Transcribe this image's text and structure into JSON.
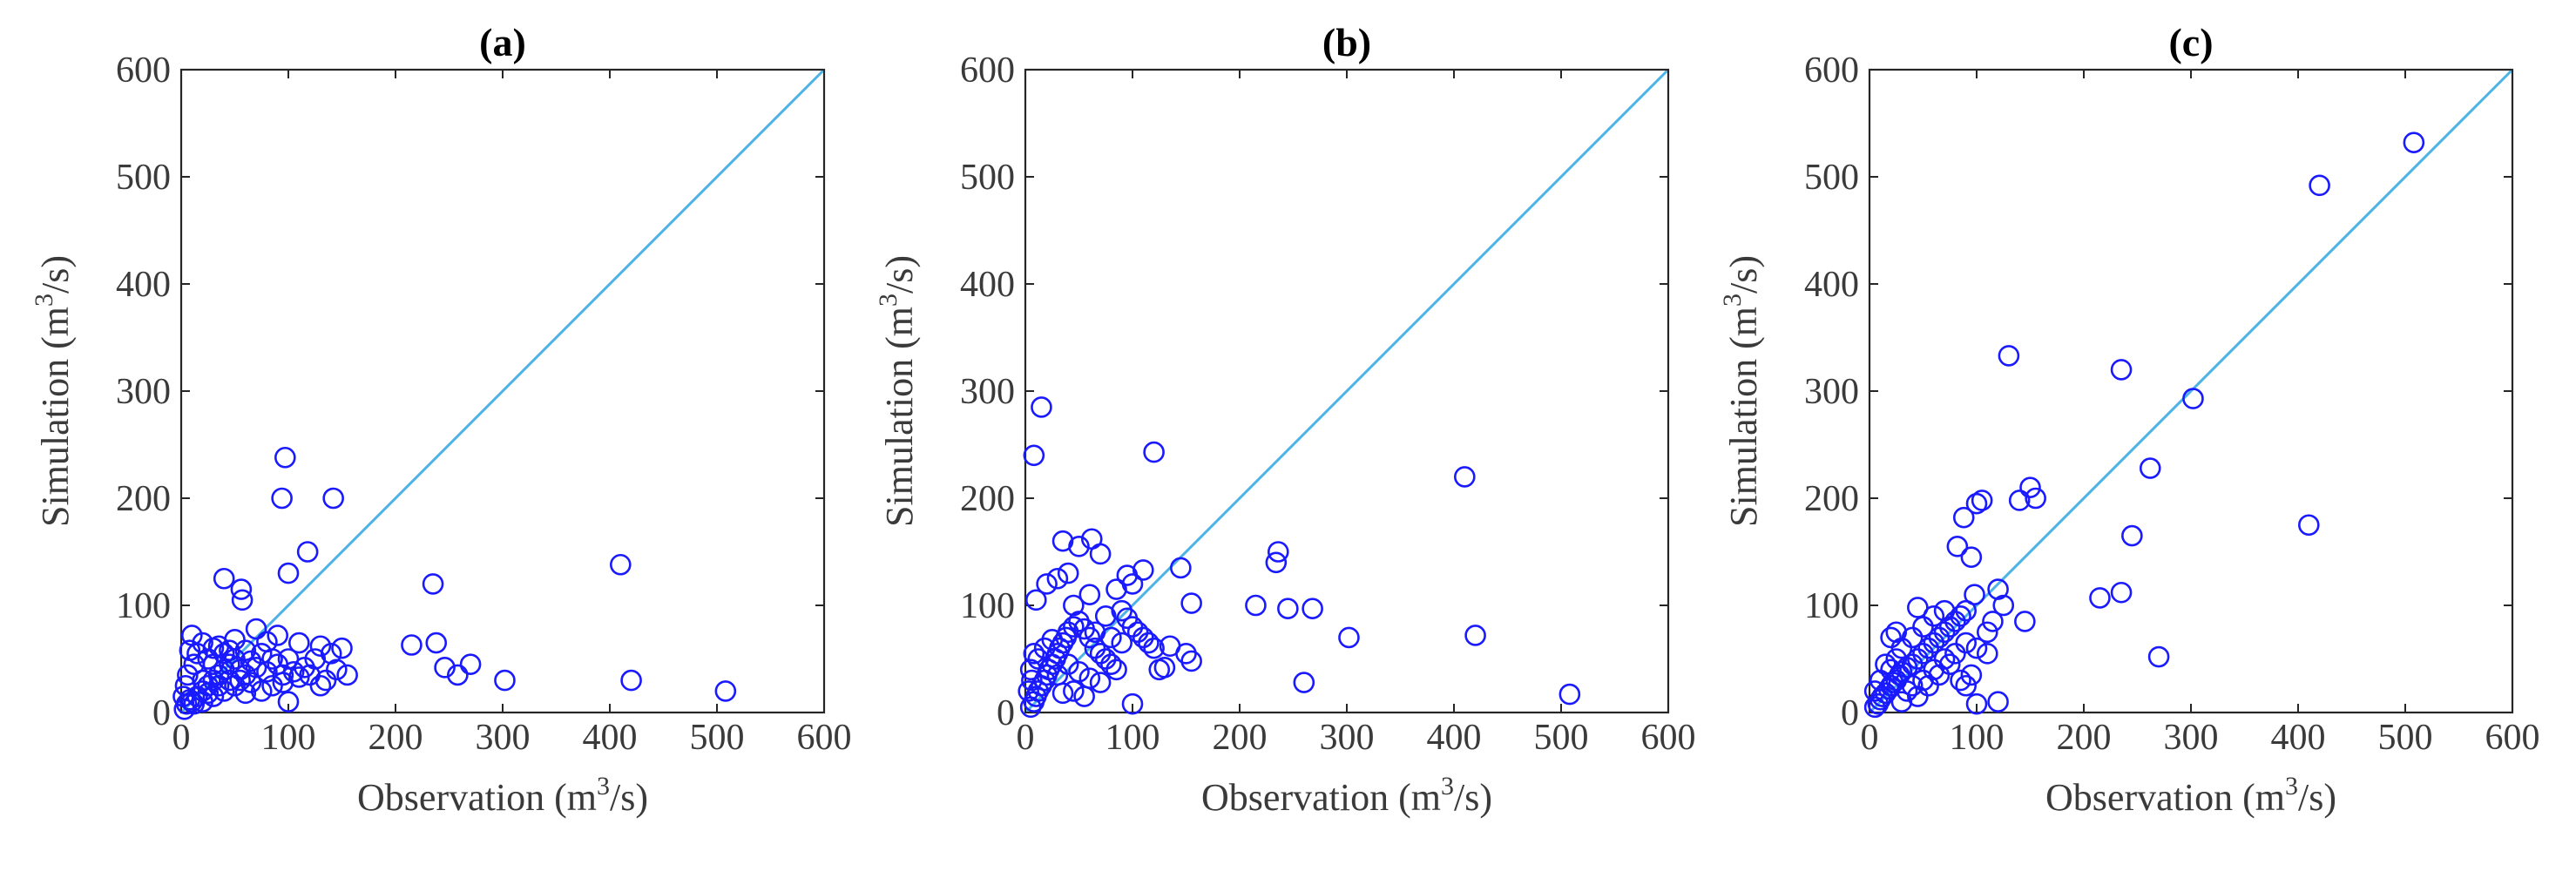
{
  "chart_data": [
    {
      "type": "scatter",
      "title": "(a)",
      "xlabel": "Observation (m3/s)",
      "ylabel": "Simulation (m3/s)",
      "xlim": [
        0,
        600
      ],
      "ylim": [
        0,
        600
      ],
      "xticks": [
        0,
        100,
        200,
        300,
        400,
        500,
        600
      ],
      "yticks": [
        0,
        100,
        200,
        300,
        400,
        500,
        600
      ],
      "reference_line": {
        "name": "1:1 line",
        "x": [
          0,
          600
        ],
        "y": [
          0,
          600
        ]
      },
      "marker": "open circle",
      "colors": {
        "marker": "#1a1aff",
        "reference_line": "#4db3e6"
      },
      "points": [
        [
          97,
          238
        ],
        [
          94,
          200
        ],
        [
          142,
          200
        ],
        [
          118,
          150
        ],
        [
          100,
          130
        ],
        [
          235,
          120
        ],
        [
          410,
          138
        ],
        [
          40,
          125
        ],
        [
          56,
          115
        ],
        [
          57,
          105
        ],
        [
          30,
          60
        ],
        [
          70,
          78
        ],
        [
          90,
          72
        ],
        [
          80,
          66
        ],
        [
          60,
          58
        ],
        [
          50,
          50
        ],
        [
          45,
          45
        ],
        [
          40,
          40
        ],
        [
          35,
          35
        ],
        [
          30,
          30
        ],
        [
          25,
          25
        ],
        [
          20,
          20
        ],
        [
          15,
          15
        ],
        [
          10,
          10
        ],
        [
          5,
          8
        ],
        [
          3,
          3
        ],
        [
          8,
          12
        ],
        [
          12,
          8
        ],
        [
          20,
          30
        ],
        [
          25,
          18
        ],
        [
          30,
          45
        ],
        [
          35,
          25
        ],
        [
          40,
          55
        ],
        [
          45,
          30
        ],
        [
          50,
          68
        ],
        [
          55,
          40
        ],
        [
          60,
          35
        ],
        [
          65,
          48
        ],
        [
          70,
          42
        ],
        [
          75,
          55
        ],
        [
          80,
          38
        ],
        [
          85,
          50
        ],
        [
          90,
          45
        ],
        [
          95,
          35
        ],
        [
          100,
          50
        ],
        [
          105,
          38
        ],
        [
          110,
          65
        ],
        [
          115,
          42
        ],
        [
          120,
          35
        ],
        [
          125,
          50
        ],
        [
          130,
          62
        ],
        [
          135,
          30
        ],
        [
          140,
          55
        ],
        [
          145,
          40
        ],
        [
          150,
          60
        ],
        [
          155,
          35
        ],
        [
          100,
          10
        ],
        [
          130,
          25
        ],
        [
          75,
          20
        ],
        [
          60,
          18
        ],
        [
          10,
          72
        ],
        [
          8,
          58
        ],
        [
          12,
          45
        ],
        [
          6,
          35
        ],
        [
          15,
          55
        ],
        [
          20,
          65
        ],
        [
          25,
          50
        ],
        [
          35,
          62
        ],
        [
          45,
          58
        ],
        [
          55,
          30
        ],
        [
          65,
          28
        ],
        [
          85,
          25
        ],
        [
          95,
          28
        ],
        [
          110,
          33
        ],
        [
          20,
          10
        ],
        [
          30,
          15
        ],
        [
          40,
          20
        ],
        [
          50,
          25
        ],
        [
          2,
          15
        ],
        [
          4,
          25
        ],
        [
          215,
          63
        ],
        [
          238,
          65
        ],
        [
          246,
          42
        ],
        [
          258,
          35
        ],
        [
          270,
          45
        ],
        [
          302,
          30
        ],
        [
          420,
          30
        ],
        [
          508,
          20
        ]
      ]
    },
    {
      "type": "scatter",
      "title": "(b)",
      "xlabel": "Observation (m3/s)",
      "ylabel": "Simulation (m3/s)",
      "xlim": [
        0,
        600
      ],
      "ylim": [
        0,
        600
      ],
      "xticks": [
        0,
        100,
        200,
        300,
        400,
        500,
        600
      ],
      "yticks": [
        0,
        100,
        200,
        300,
        400,
        500,
        600
      ],
      "reference_line": {
        "name": "1:1 line",
        "x": [
          0,
          600
        ],
        "y": [
          0,
          600
        ]
      },
      "marker": "open circle",
      "colors": {
        "marker": "#1a1aff",
        "reference_line": "#4db3e6"
      },
      "points": [
        [
          15,
          285
        ],
        [
          8,
          240
        ],
        [
          120,
          243
        ],
        [
          410,
          220
        ],
        [
          236,
          150
        ],
        [
          234,
          140
        ],
        [
          10,
          105
        ],
        [
          35,
          160
        ],
        [
          50,
          155
        ],
        [
          62,
          162
        ],
        [
          70,
          148
        ],
        [
          40,
          130
        ],
        [
          30,
          125
        ],
        [
          20,
          120
        ],
        [
          95,
          128
        ],
        [
          110,
          133
        ],
        [
          145,
          135
        ],
        [
          100,
          120
        ],
        [
          85,
          115
        ],
        [
          60,
          110
        ],
        [
          45,
          100
        ],
        [
          5,
          5
        ],
        [
          8,
          10
        ],
        [
          10,
          15
        ],
        [
          12,
          20
        ],
        [
          15,
          25
        ],
        [
          18,
          30
        ],
        [
          20,
          35
        ],
        [
          22,
          40
        ],
        [
          25,
          45
        ],
        [
          28,
          50
        ],
        [
          30,
          55
        ],
        [
          32,
          60
        ],
        [
          35,
          65
        ],
        [
          38,
          70
        ],
        [
          40,
          75
        ],
        [
          45,
          80
        ],
        [
          50,
          85
        ],
        [
          55,
          78
        ],
        [
          60,
          70
        ],
        [
          65,
          60
        ],
        [
          70,
          55
        ],
        [
          75,
          50
        ],
        [
          80,
          45
        ],
        [
          85,
          40
        ],
        [
          90,
          95
        ],
        [
          95,
          88
        ],
        [
          100,
          80
        ],
        [
          105,
          75
        ],
        [
          110,
          70
        ],
        [
          115,
          65
        ],
        [
          120,
          60
        ],
        [
          125,
          40
        ],
        [
          130,
          42
        ],
        [
          135,
          62
        ],
        [
          150,
          55
        ],
        [
          155,
          48
        ],
        [
          100,
          8
        ],
        [
          5,
          40
        ],
        [
          8,
          55
        ],
        [
          3,
          20
        ],
        [
          6,
          30
        ],
        [
          12,
          50
        ],
        [
          18,
          60
        ],
        [
          25,
          68
        ],
        [
          30,
          35
        ],
        [
          40,
          45
        ],
        [
          50,
          38
        ],
        [
          60,
          32
        ],
        [
          70,
          28
        ],
        [
          55,
          15
        ],
        [
          45,
          20
        ],
        [
          35,
          18
        ],
        [
          65,
          75
        ],
        [
          75,
          90
        ],
        [
          80,
          70
        ],
        [
          90,
          65
        ],
        [
          155,
          102
        ],
        [
          215,
          100
        ],
        [
          245,
          97
        ],
        [
          268,
          97
        ],
        [
          302,
          70
        ],
        [
          260,
          28
        ],
        [
          420,
          72
        ],
        [
          508,
          17
        ]
      ]
    },
    {
      "type": "scatter",
      "title": "(c)",
      "xlabel": "Observation (m3/s)",
      "ylabel": "Simulation (m3/s)",
      "xlim": [
        0,
        600
      ],
      "ylim": [
        0,
        600
      ],
      "xticks": [
        0,
        100,
        200,
        300,
        400,
        500,
        600
      ],
      "yticks": [
        0,
        100,
        200,
        300,
        400,
        500,
        600
      ],
      "reference_line": {
        "name": "1:1 line",
        "x": [
          0,
          600
        ],
        "y": [
          0,
          600
        ]
      },
      "marker": "open circle",
      "colors": {
        "marker": "#1a1aff",
        "reference_line": "#4db3e6"
      },
      "points": [
        [
          508,
          532
        ],
        [
          420,
          492
        ],
        [
          130,
          333
        ],
        [
          235,
          320
        ],
        [
          302,
          293
        ],
        [
          262,
          228
        ],
        [
          150,
          210
        ],
        [
          155,
          200
        ],
        [
          140,
          198
        ],
        [
          105,
          198
        ],
        [
          100,
          195
        ],
        [
          245,
          165
        ],
        [
          410,
          175
        ],
        [
          88,
          182
        ],
        [
          82,
          155
        ],
        [
          95,
          145
        ],
        [
          215,
          107
        ],
        [
          235,
          112
        ],
        [
          270,
          52
        ],
        [
          120,
          115
        ],
        [
          125,
          100
        ],
        [
          115,
          85
        ],
        [
          110,
          75
        ],
        [
          145,
          85
        ],
        [
          98,
          110
        ],
        [
          5,
          5
        ],
        [
          8,
          8
        ],
        [
          10,
          12
        ],
        [
          12,
          15
        ],
        [
          15,
          18
        ],
        [
          18,
          22
        ],
        [
          20,
          25
        ],
        [
          22,
          28
        ],
        [
          25,
          30
        ],
        [
          28,
          35
        ],
        [
          30,
          38
        ],
        [
          35,
          42
        ],
        [
          40,
          45
        ],
        [
          45,
          50
        ],
        [
          50,
          55
        ],
        [
          55,
          60
        ],
        [
          60,
          65
        ],
        [
          65,
          70
        ],
        [
          70,
          75
        ],
        [
          75,
          80
        ],
        [
          80,
          85
        ],
        [
          85,
          90
        ],
        [
          90,
          95
        ],
        [
          30,
          60
        ],
        [
          25,
          50
        ],
        [
          20,
          40
        ],
        [
          40,
          70
        ],
        [
          45,
          98
        ],
        [
          50,
          80
        ],
        [
          60,
          90
        ],
        [
          70,
          95
        ],
        [
          35,
          20
        ],
        [
          40,
          25
        ],
        [
          50,
          30
        ],
        [
          60,
          40
        ],
        [
          70,
          50
        ],
        [
          80,
          55
        ],
        [
          85,
          30
        ],
        [
          90,
          25
        ],
        [
          95,
          35
        ],
        [
          100,
          8
        ],
        [
          120,
          10
        ],
        [
          10,
          30
        ],
        [
          15,
          45
        ],
        [
          5,
          20
        ],
        [
          20,
          70
        ],
        [
          25,
          75
        ],
        [
          30,
          10
        ],
        [
          45,
          15
        ],
        [
          55,
          25
        ],
        [
          65,
          35
        ],
        [
          75,
          45
        ],
        [
          110,
          55
        ],
        [
          100,
          60
        ],
        [
          90,
          65
        ]
      ]
    }
  ]
}
